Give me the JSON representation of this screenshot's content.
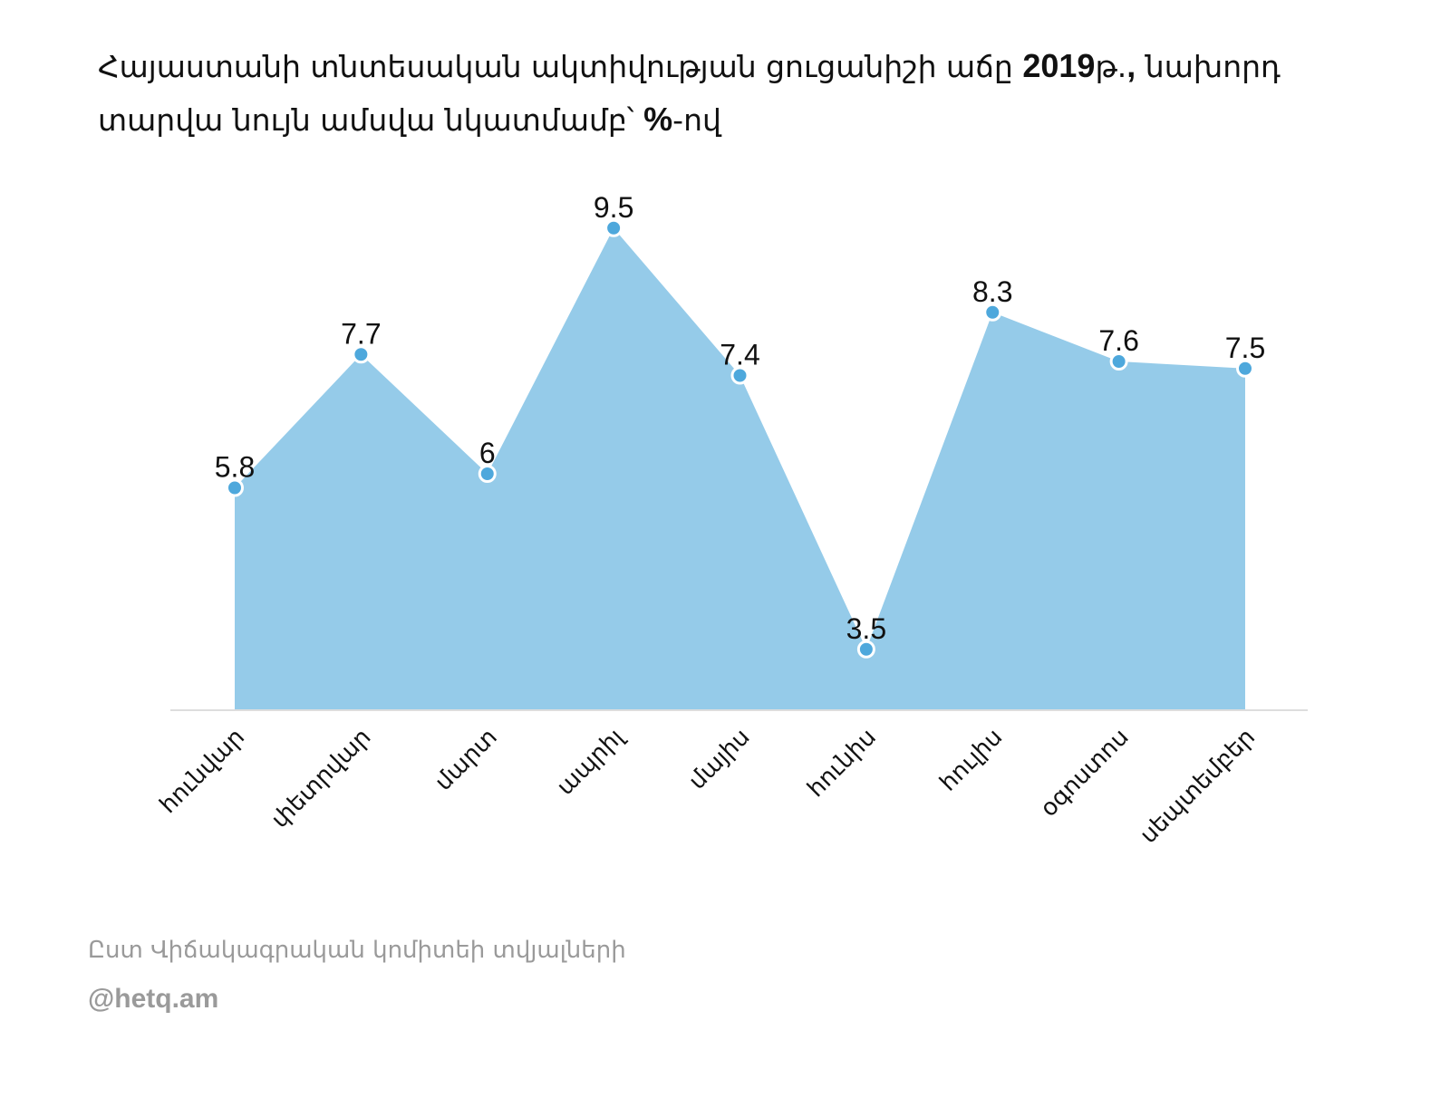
{
  "title_parts": [
    "Հայաստանի տնտեսական ակտիվության ցուցանիշի աճը ",
    "2019",
    "թ.",
    ",",
    " նախորդ տարվա նույն ամսվա նկատմամբ՝ ",
    "%",
    "-ով"
  ],
  "chart_data": {
    "type": "area",
    "categories": [
      "հունվար",
      "փետրվար",
      "մարտ",
      "ապրիլ",
      "մայիս",
      "հունիս",
      "հուլիս",
      "օգոստոս",
      "սեպտեմբեր"
    ],
    "values": [
      5.8,
      7.7,
      6,
      9.5,
      7.4,
      3.5,
      8.3,
      7.6,
      7.5
    ],
    "data_labels": [
      "5.8",
      "7.7",
      "6",
      "9.5",
      "7.4",
      "3.5",
      "8.3",
      "7.6",
      "7.5"
    ],
    "ylim": [
      -2.4,
      10.6
    ],
    "grid": false,
    "legend": "none",
    "fill_color": "#95cbe9",
    "marker_color": "#4ea8dc",
    "baseline_color": "#dddddd"
  },
  "source": "Ըստ Վիճակագրական կոմիտեի տվյալների",
  "credit": "@hetq.am"
}
